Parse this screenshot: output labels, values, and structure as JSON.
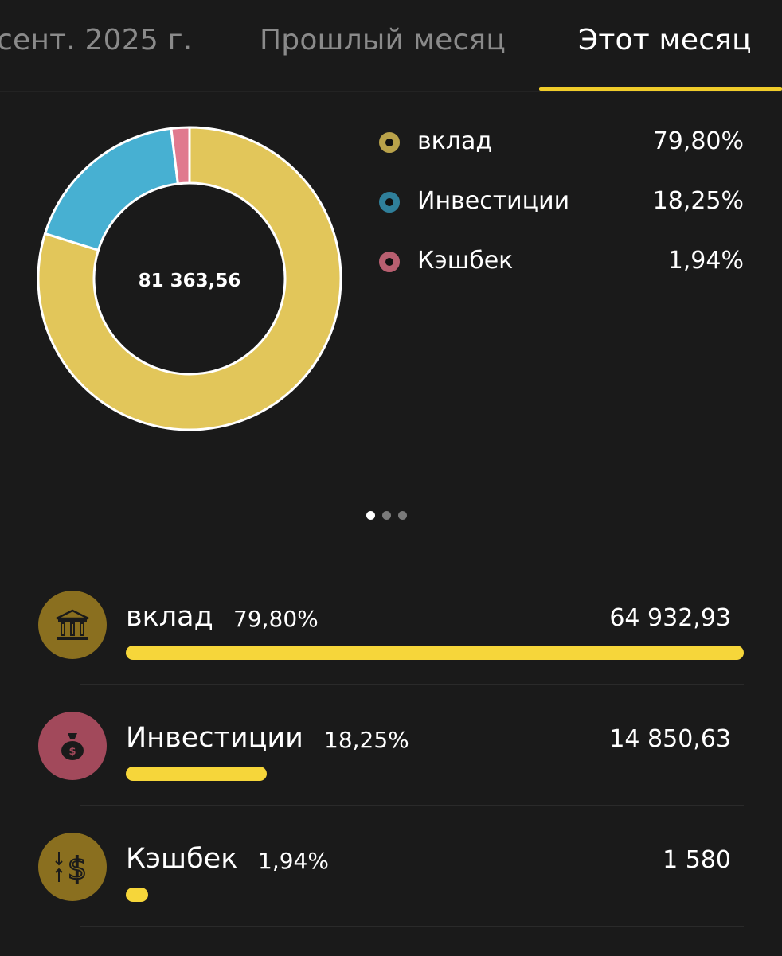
{
  "tabs": [
    {
      "label": "сент. 2025 г.",
      "active": false
    },
    {
      "label": "Прошлый месяц",
      "active": false
    },
    {
      "label": "Этот месяц",
      "active": true
    }
  ],
  "chart_data": {
    "type": "pie",
    "center_label": "81 363,56",
    "categories": [
      "вклад",
      "Инвестиции",
      "Кэшбек"
    ],
    "values": [
      79.8,
      18.25,
      1.94
    ],
    "value_labels": [
      "79,80%",
      "18,25%",
      "1,94%"
    ],
    "colors": [
      "#e2c65a",
      "#47b0d2",
      "#e07a8e"
    ],
    "legend_position": "right"
  },
  "pager": {
    "count": 3,
    "active_index": 0
  },
  "categories": [
    {
      "name": "вклад",
      "percent": "79,80%",
      "amount": "64 932,93",
      "share": 0.798,
      "icon": "bank-icon",
      "icon_color": "#8a6f1f"
    },
    {
      "name": "Инвестиции",
      "percent": "18,25%",
      "amount": "14 850,63",
      "share": 0.1825,
      "icon": "money-bag-icon",
      "icon_color": "#a2495b"
    },
    {
      "name": "Кэшбек",
      "percent": "1,94%",
      "amount": "1 580",
      "share": 0.0194,
      "icon": "dollar-exchange-icon",
      "icon_color": "#8a6f1f"
    }
  ],
  "colors": {
    "accent": "#f0cc2a",
    "bar": "#f6d63a",
    "background": "#1a1a1a"
  }
}
